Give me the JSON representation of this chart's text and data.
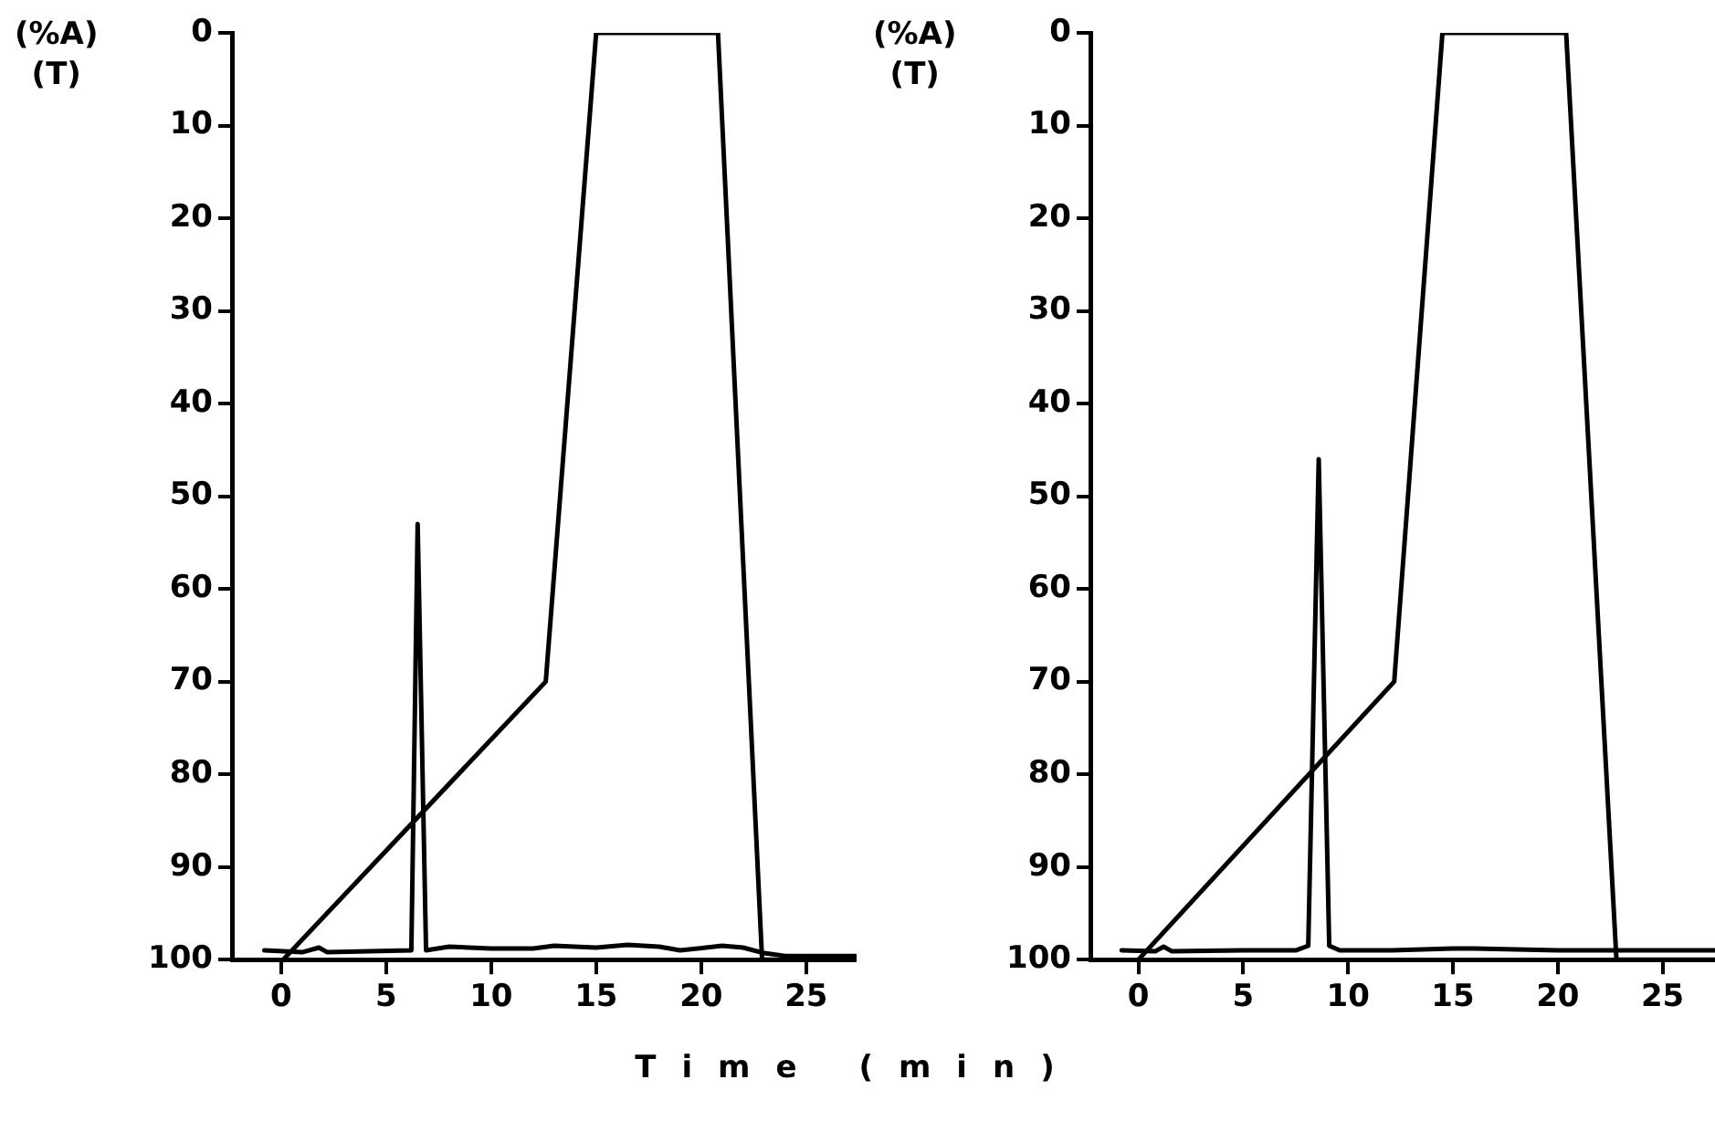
{
  "chart_data": [
    {
      "type": "line",
      "ylabel": "(%A)\n(T)",
      "xlabel": "Time (min)",
      "xlim": [
        -2.3,
        27.4
      ],
      "xticks": [
        0,
        5,
        10,
        15,
        20,
        25
      ],
      "ylim": [
        100,
        0
      ],
      "yticks": [
        0,
        10,
        20,
        30,
        40,
        50,
        60,
        70,
        80,
        90,
        100
      ],
      "grid": false,
      "legend": false,
      "marker": "none",
      "line_style": "solid",
      "series": [
        {
          "color": "#000000",
          "x": [
            0.1,
            12.6,
            15.0,
            20.8,
            22.9,
            27.4
          ],
          "values": [
            100,
            70,
            0,
            0,
            100,
            100
          ]
        },
        {
          "color": "#000000",
          "x": [
            -0.8,
            1.0,
            1.8,
            2.2,
            6.2,
            6.5,
            6.9,
            8.0,
            10.0,
            12.0,
            13.0,
            15.0,
            16.5,
            18.0,
            19.0,
            21.0,
            22.0,
            23.0,
            24.0,
            27.4
          ],
          "values": [
            99,
            99.2,
            98.7,
            99.2,
            99,
            53,
            99,
            98.6,
            98.8,
            98.8,
            98.5,
            98.7,
            98.4,
            98.6,
            99,
            98.5,
            98.7,
            99.3,
            99.6,
            99.6
          ]
        }
      ]
    },
    {
      "type": "line",
      "ylabel": "(%A)\n(T)",
      "xlim": [
        -2.25,
        27.5
      ],
      "xticks": [
        0,
        5,
        10,
        15,
        20,
        25
      ],
      "ylim": [
        100,
        0
      ],
      "yticks": [
        0,
        10,
        20,
        30,
        40,
        50,
        60,
        70,
        80,
        90,
        100
      ],
      "grid": false,
      "legend": false,
      "marker": "none",
      "line_style": "solid",
      "series": [
        {
          "color": "#000000",
          "x": [
            0.0,
            12.2,
            14.5,
            20.4,
            22.8,
            27.5
          ],
          "values": [
            100,
            70,
            0,
            0,
            100,
            100
          ]
        },
        {
          "color": "#000000",
          "x": [
            -0.8,
            0.8,
            1.2,
            1.6,
            5.0,
            7.5,
            8.1,
            8.6,
            9.1,
            9.6,
            12.0,
            15.0,
            16.0,
            20.0,
            23.0,
            27.5
          ],
          "values": [
            99,
            99.1,
            98.6,
            99.1,
            99,
            99,
            98.5,
            46,
            98.5,
            99,
            99,
            98.8,
            98.8,
            99,
            99,
            99
          ]
        }
      ]
    }
  ]
}
